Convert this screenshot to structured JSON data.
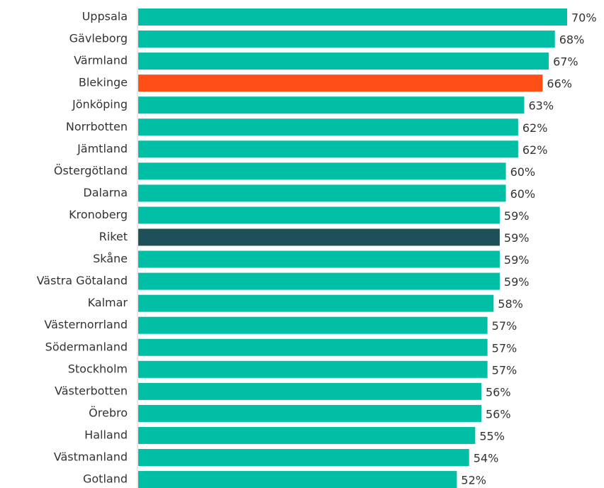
{
  "chart_data": {
    "type": "bar",
    "orientation": "horizontal",
    "categories": [
      "Uppsala",
      "Gävleborg",
      "Värmland",
      "Blekinge",
      "Jönköping",
      "Norrbotten",
      "Jämtland",
      "Östergötland",
      "Dalarna",
      "Kronoberg",
      "Riket",
      "Skåne",
      "Västra Götaland",
      "Kalmar",
      "Västernorrland",
      "Södermanland",
      "Stockholm",
      "Västerbotten",
      "Örebro",
      "Halland",
      "Västmanland",
      "Gotland"
    ],
    "values": [
      70,
      68,
      67,
      66,
      63,
      62,
      62,
      60,
      60,
      59,
      59,
      59,
      59,
      58,
      57,
      57,
      57,
      56,
      56,
      55,
      54,
      52
    ],
    "value_labels": [
      "70%",
      "68%",
      "67%",
      "66%",
      "63%",
      "62%",
      "62%",
      "60%",
      "60%",
      "59%",
      "59%",
      "59%",
      "59%",
      "58%",
      "57%",
      "57%",
      "57%",
      "56%",
      "56%",
      "55%",
      "54%",
      "52%"
    ],
    "colors": [
      "#00bfa5",
      "#00bfa5",
      "#00bfa5",
      "#ff4f17",
      "#00bfa5",
      "#00bfa5",
      "#00bfa5",
      "#00bfa5",
      "#00bfa5",
      "#00bfa5",
      "#1d5058",
      "#00bfa5",
      "#00bfa5",
      "#00bfa5",
      "#00bfa5",
      "#00bfa5",
      "#00bfa5",
      "#00bfa5",
      "#00bfa5",
      "#00bfa5",
      "#00bfa5",
      "#00bfa5"
    ],
    "xlim": [
      0,
      70
    ]
  }
}
